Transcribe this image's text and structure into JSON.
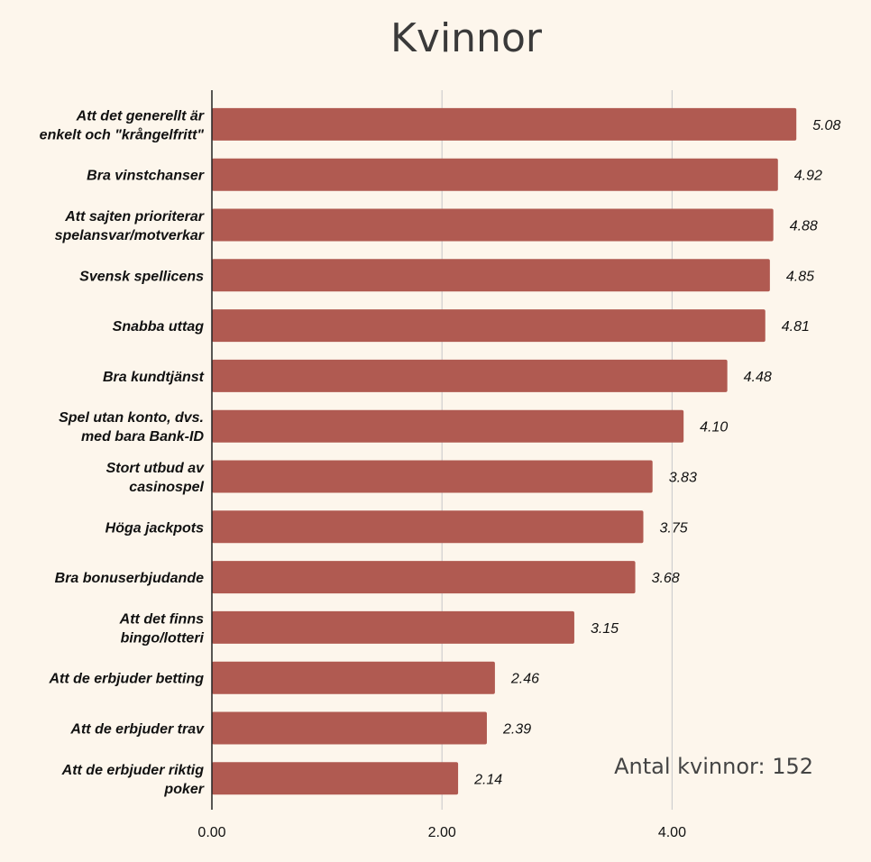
{
  "chart_data": {
    "type": "bar",
    "orientation": "horizontal",
    "title": "Kvinnor",
    "annotation": "Antal kvinnor: 152",
    "categories": [
      [
        "Att det generellt är",
        "enkelt och \"krångelfritt\""
      ],
      [
        "Bra vinstchanser"
      ],
      [
        "Att sajten prioriterar",
        "spelansvar/motverkar"
      ],
      [
        "Svensk spellicens"
      ],
      [
        "Snabba uttag"
      ],
      [
        "Bra kundtjänst"
      ],
      [
        "Spel utan konto, dvs.",
        "med bara Bank-ID"
      ],
      [
        "Stort utbud av",
        "casinospel"
      ],
      [
        "Höga jackpots"
      ],
      [
        "Bra bonuserbjudande"
      ],
      [
        "Att det finns",
        "bingo/lotteri"
      ],
      [
        "Att de erbjuder betting"
      ],
      [
        "Att de erbjuder trav"
      ],
      [
        "Att de erbjuder riktig",
        "poker"
      ]
    ],
    "values": [
      5.08,
      4.92,
      4.88,
      4.85,
      4.81,
      4.48,
      4.1,
      3.83,
      3.75,
      3.68,
      3.15,
      2.46,
      2.39,
      2.14
    ],
    "value_labels": [
      "5.08",
      "4.92",
      "4.88",
      "4.85",
      "4.81",
      "4.48",
      "4.10",
      "3.83",
      "3.75",
      "3.68",
      "3.15",
      "2.46",
      "2.39",
      "2.14"
    ],
    "xticks": [
      0,
      2,
      4
    ],
    "xtick_labels": [
      "0.00",
      "2.00",
      "4.00"
    ],
    "xlim": [
      0,
      5.6
    ],
    "grid": "vertical",
    "colors": {
      "bar": "#b05a51",
      "background": "#fdf6ec"
    }
  }
}
